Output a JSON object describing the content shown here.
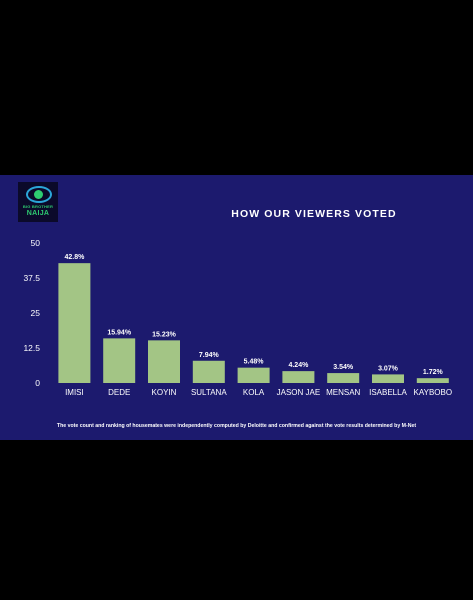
{
  "logo": {
    "line1": "BIG BROTHER",
    "line2": "NAIJA"
  },
  "chart_data": {
    "type": "bar",
    "title": "HOW OUR VIEWERS VOTED",
    "categories": [
      "IMISI",
      "DEDE",
      "KOYIN",
      "SULTANA",
      "KOLA",
      "JASON JAE",
      "MENSAN",
      "ISABELLA",
      "KAYBOBO"
    ],
    "values": [
      42.8,
      15.94,
      15.23,
      7.94,
      5.48,
      4.24,
      3.54,
      3.07,
      1.72
    ],
    "data_labels": [
      "42.8%",
      "15.94%",
      "15.23%",
      "7.94%",
      "5.48%",
      "4.24%",
      "3.54%",
      "3.07%",
      "1.72%"
    ],
    "y_ticks": [
      "0",
      "12.5",
      "25",
      "37.5",
      "50"
    ],
    "ylim": [
      0,
      50
    ],
    "grid": false,
    "colors": {
      "background": "#1c1a6e",
      "bar": "#a3c585",
      "text": "#ffffff",
      "outer": "#000000"
    }
  },
  "footnote": "The vote count and ranking of housemates were independently computed by Deloitte and confirmed against the vote results determined by M-Net"
}
